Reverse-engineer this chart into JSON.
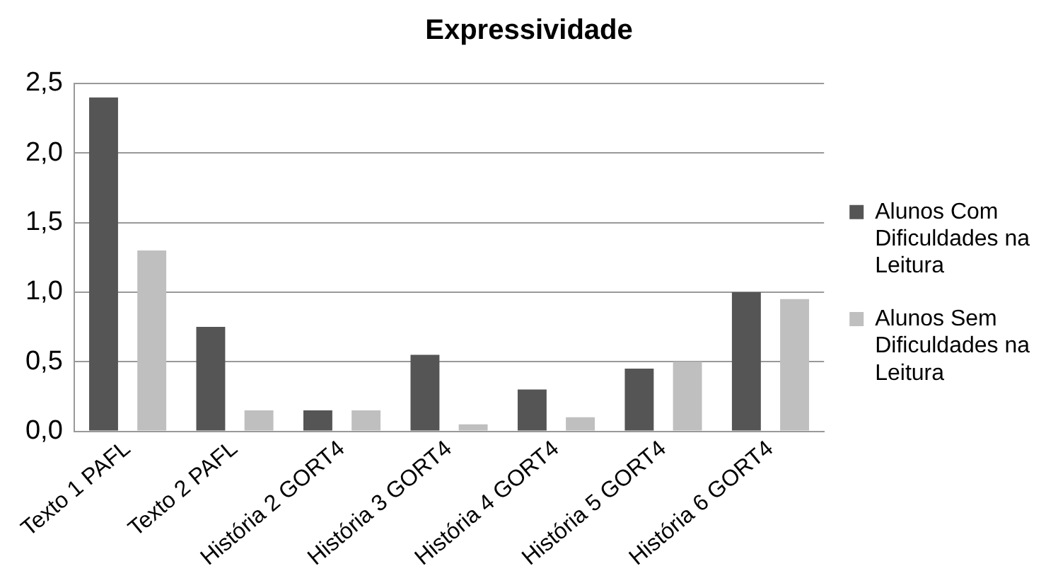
{
  "chart_data": {
    "type": "bar",
    "title": "Expressividade",
    "categories": [
      "Texto 1 PAFL",
      "Texto 2 PAFL",
      "História 2 GORT4",
      "História 3 GORT4",
      "História 4 GORT4",
      "História 5 GORT4",
      "História 6 GORT4"
    ],
    "series": [
      {
        "name": "Alunos Com Dificuldades na Leitura",
        "color": "#555555",
        "values": [
          2.4,
          0.75,
          0.15,
          0.55,
          0.3,
          0.45,
          1.0
        ]
      },
      {
        "name": "Alunos Sem Dificuldades na Leitura",
        "color": "#bfbfbf",
        "values": [
          1.3,
          0.15,
          0.15,
          0.05,
          0.1,
          0.5,
          0.95
        ]
      }
    ],
    "ylim": [
      0,
      2.5
    ],
    "yticks": [
      {
        "value": 0,
        "label": "0,0"
      },
      {
        "value": 0.5,
        "label": "0,5"
      },
      {
        "value": 1,
        "label": "1,0"
      },
      {
        "value": 1.5,
        "label": "1,5"
      },
      {
        "value": 2,
        "label": "2,0"
      },
      {
        "value": 2.5,
        "label": "2,5"
      }
    ],
    "grid": "y",
    "legend": "right"
  }
}
